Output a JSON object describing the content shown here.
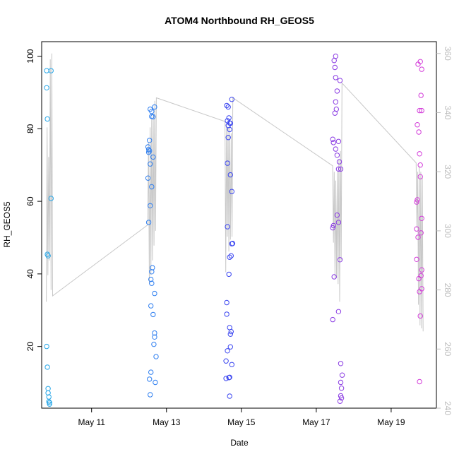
{
  "chart_data": {
    "type": "scatter",
    "title": "ATOM4 Northbound RH_GEOS5",
    "xlabel": "Date",
    "ylabel": "RH_GEOS5",
    "x_axis": {
      "type": "date",
      "range": [
        "2018-05-09T16:00",
        "2018-05-20T05:00"
      ],
      "ticks": [
        {
          "value": "2018-05-11",
          "label": "May 11"
        },
        {
          "value": "2018-05-13",
          "label": "May 13"
        },
        {
          "value": "2018-05-15",
          "label": "May 15"
        },
        {
          "value": "2018-05-17",
          "label": "May 17"
        },
        {
          "value": "2018-05-19",
          "label": "May 19"
        }
      ]
    },
    "y_axis_left": {
      "range": [
        3,
        104
      ],
      "ticks": [
        20,
        40,
        60,
        80,
        100
      ]
    },
    "y_axis_right": {
      "range": [
        240,
        364
      ],
      "ticks": [
        240,
        260,
        280,
        300,
        320,
        340,
        360
      ],
      "color": "#bdbdbd"
    },
    "grid": false,
    "legend": "none",
    "line_color": "#c8c8c8",
    "series": [
      {
        "color": "#28a7e8",
        "points": [
          [
            "2018-05-09T19:12",
            96
          ],
          [
            "2018-05-09T19:12",
            91.3
          ],
          [
            "2018-05-09T19:40",
            82.7
          ],
          [
            "2018-05-09T19:40",
            45.4
          ],
          [
            "2018-05-09T20:08",
            45
          ],
          [
            "2018-05-09T19:12",
            20
          ],
          [
            "2018-05-09T19:40",
            14.3
          ],
          [
            "2018-05-09T20:08",
            8.4
          ],
          [
            "2018-05-09T20:08",
            7.2
          ],
          [
            "2018-05-09T20:36",
            6.1
          ],
          [
            "2018-05-09T20:36",
            4.8
          ],
          [
            "2018-05-09T21:04",
            4.5
          ],
          [
            "2018-05-09T21:04",
            4.1
          ],
          [
            "2018-05-09T22:00",
            96
          ],
          [
            "2018-05-09T22:00",
            60.8
          ]
        ]
      },
      {
        "color": "#2f7ff0",
        "points": [
          [
            "2018-05-12T12:10",
            75
          ],
          [
            "2018-05-12T12:10",
            66.4
          ],
          [
            "2018-05-12T12:38",
            74.3
          ],
          [
            "2018-05-12T12:38",
            73.5
          ],
          [
            "2018-05-12T13:06",
            76.8
          ],
          [
            "2018-05-12T13:06",
            73.9
          ],
          [
            "2018-05-12T13:34",
            70.3
          ],
          [
            "2018-05-12T13:34",
            58.8
          ],
          [
            "2018-05-12T12:38",
            54.2
          ],
          [
            "2018-05-12T13:34",
            85.4
          ],
          [
            "2018-05-12T14:30",
            84.8
          ],
          [
            "2018-05-12T14:30",
            83.4
          ],
          [
            "2018-05-12T15:26",
            83.3
          ],
          [
            "2018-05-12T16:22",
            86
          ],
          [
            "2018-05-12T15:26",
            72.2
          ],
          [
            "2018-05-12T14:30",
            64
          ],
          [
            "2018-05-12T14:58",
            41.7
          ],
          [
            "2018-05-12T14:30",
            40.6
          ],
          [
            "2018-05-12T14:02",
            38.5
          ],
          [
            "2018-05-12T14:30",
            37.4
          ],
          [
            "2018-05-12T16:22",
            34.6
          ],
          [
            "2018-05-12T14:02",
            31.2
          ],
          [
            "2018-05-12T15:26",
            28.8
          ],
          [
            "2018-05-12T16:22",
            23.7
          ],
          [
            "2018-05-12T16:22",
            22.6
          ],
          [
            "2018-05-12T15:54",
            20.6
          ],
          [
            "2018-05-12T17:18",
            17.2
          ],
          [
            "2018-05-12T14:02",
            12.9
          ],
          [
            "2018-05-12T13:06",
            11
          ],
          [
            "2018-05-12T16:50",
            10.1
          ],
          [
            "2018-05-12T13:34",
            6.7
          ]
        ]
      },
      {
        "color": "#3a45f0",
        "points": [
          [
            "2018-05-14T14:38",
            86.4
          ],
          [
            "2018-05-14T15:34",
            86
          ],
          [
            "2018-05-14T17:54",
            88.1
          ],
          [
            "2018-05-14T16:02",
            83
          ],
          [
            "2018-05-14T15:06",
            82.2
          ],
          [
            "2018-05-14T16:30",
            81.6
          ],
          [
            "2018-05-14T15:34",
            80.9
          ],
          [
            "2018-05-14T16:58",
            81.5
          ],
          [
            "2018-05-14T16:30",
            79.8
          ],
          [
            "2018-05-14T15:34",
            77.6
          ],
          [
            "2018-05-14T15:06",
            70.5
          ],
          [
            "2018-05-14T16:58",
            67.3
          ],
          [
            "2018-05-14T17:54",
            62.7
          ],
          [
            "2018-05-14T15:06",
            53
          ],
          [
            "2018-05-14T17:54",
            48.3
          ],
          [
            "2018-05-14T18:22",
            48.4
          ],
          [
            "2018-05-14T17:26",
            45
          ],
          [
            "2018-05-14T16:30",
            44.6
          ],
          [
            "2018-05-14T16:02",
            39.9
          ],
          [
            "2018-05-14T14:38",
            32.1
          ],
          [
            "2018-05-14T14:38",
            28.9
          ],
          [
            "2018-05-14T16:30",
            25.2
          ],
          [
            "2018-05-14T17:26",
            24.1
          ],
          [
            "2018-05-14T16:58",
            23.4
          ],
          [
            "2018-05-14T16:58",
            19.9
          ],
          [
            "2018-05-14T15:06",
            18.8
          ],
          [
            "2018-05-14T14:10",
            16
          ],
          [
            "2018-05-14T17:54",
            15
          ],
          [
            "2018-05-14T14:10",
            11.2
          ],
          [
            "2018-05-14T16:02",
            11.4
          ],
          [
            "2018-05-14T16:30",
            11.5
          ],
          [
            "2018-05-14T16:30",
            6.3
          ]
        ]
      },
      {
        "color": "#8a3be3",
        "points": [
          [
            "2018-05-17T12:25",
            100
          ],
          [
            "2018-05-17T11:29",
            98.8
          ],
          [
            "2018-05-17T11:57",
            96.9
          ],
          [
            "2018-05-17T12:25",
            94.1
          ],
          [
            "2018-05-17T15:13",
            93.3
          ],
          [
            "2018-05-17T13:21",
            90.4
          ],
          [
            "2018-05-17T12:25",
            87.4
          ],
          [
            "2018-05-17T12:53",
            85.4
          ],
          [
            "2018-05-17T11:57",
            84.3
          ],
          [
            "2018-05-17T10:33",
            77.1
          ],
          [
            "2018-05-17T11:01",
            76.2
          ],
          [
            "2018-05-17T14:17",
            76.5
          ],
          [
            "2018-05-17T12:25",
            74.4
          ],
          [
            "2018-05-17T13:21",
            72.7
          ],
          [
            "2018-05-17T14:45",
            70.9
          ],
          [
            "2018-05-17T14:17",
            68.9
          ],
          [
            "2018-05-17T15:41",
            68.9
          ],
          [
            "2018-05-17T13:21",
            56.2
          ],
          [
            "2018-05-17T14:17",
            54.2
          ],
          [
            "2018-05-17T11:01",
            53.3
          ],
          [
            "2018-05-17T10:33",
            52.7
          ],
          [
            "2018-05-17T15:13",
            43.9
          ],
          [
            "2018-05-17T11:29",
            39.2
          ],
          [
            "2018-05-17T14:17",
            29.6
          ],
          [
            "2018-05-17T10:33",
            27.4
          ],
          [
            "2018-05-17T15:41",
            15.3
          ],
          [
            "2018-05-17T16:37",
            12.1
          ],
          [
            "2018-05-17T15:41",
            10.1
          ],
          [
            "2018-05-17T16:09",
            8.5
          ],
          [
            "2018-05-17T15:41",
            6.4
          ],
          [
            "2018-05-17T16:09",
            5.8
          ],
          [
            "2018-05-17T15:13",
            4.9
          ]
        ]
      },
      {
        "color": "#d33bd9",
        "points": [
          [
            "2018-05-19T17:15",
            97.8
          ],
          [
            "2018-05-19T18:40",
            98.5
          ],
          [
            "2018-05-19T19:36",
            96.4
          ],
          [
            "2018-05-19T19:08",
            89.2
          ],
          [
            "2018-05-19T18:12",
            85
          ],
          [
            "2018-05-19T19:36",
            85
          ],
          [
            "2018-05-19T16:47",
            81.1
          ],
          [
            "2018-05-19T17:43",
            79.1
          ],
          [
            "2018-05-19T18:12",
            73.1
          ],
          [
            "2018-05-19T18:40",
            70
          ],
          [
            "2018-05-19T18:40",
            66.8
          ],
          [
            "2018-05-19T16:47",
            60.4
          ],
          [
            "2018-05-19T16:19",
            59.8
          ],
          [
            "2018-05-19T19:36",
            55.3
          ],
          [
            "2018-05-19T16:19",
            52.4
          ],
          [
            "2018-05-19T19:08",
            51.3
          ],
          [
            "2018-05-19T17:15",
            50.1
          ],
          [
            "2018-05-19T16:19",
            44
          ],
          [
            "2018-05-19T19:36",
            41.1
          ],
          [
            "2018-05-19T19:08",
            39.5
          ],
          [
            "2018-05-19T17:43",
            38.7
          ],
          [
            "2018-05-19T19:36",
            35.9
          ],
          [
            "2018-05-19T18:12",
            35.1
          ],
          [
            "2018-05-19T18:40",
            28.4
          ],
          [
            "2018-05-19T18:12",
            10.3
          ]
        ]
      }
    ],
    "line_series": {
      "axis": "right",
      "points": [
        [
          "2018-05-09T19:00",
          276
        ],
        [
          "2018-05-09T19:30",
          335
        ],
        [
          "2018-05-09T20:00",
          285
        ],
        [
          "2018-05-09T20:30",
          325
        ],
        [
          "2018-05-09T21:00",
          290
        ],
        [
          "2018-05-09T21:30",
          358
        ],
        [
          "2018-05-09T22:00",
          280
        ],
        [
          "2018-05-09T22:30",
          360
        ],
        [
          "2018-05-09T23:00",
          278
        ],
        [
          "2018-05-12T12:00",
          302
        ],
        [
          "2018-05-12T12:30",
          330
        ],
        [
          "2018-05-12T13:00",
          282
        ],
        [
          "2018-05-12T13:30",
          335
        ],
        [
          "2018-05-12T14:00",
          285
        ],
        [
          "2018-05-12T14:30",
          338
        ],
        [
          "2018-05-12T15:00",
          290
        ],
        [
          "2018-05-12T15:30",
          340
        ],
        [
          "2018-05-12T16:00",
          295
        ],
        [
          "2018-05-12T16:30",
          344
        ],
        [
          "2018-05-12T17:00",
          300
        ],
        [
          "2018-05-12T17:30",
          345
        ],
        [
          "2018-05-14T13:30",
          337
        ],
        [
          "2018-05-14T14:00",
          286
        ],
        [
          "2018-05-14T14:30",
          336
        ],
        [
          "2018-05-14T15:00",
          298
        ],
        [
          "2018-05-14T15:30",
          335
        ],
        [
          "2018-05-14T16:00",
          293
        ],
        [
          "2018-05-14T16:30",
          336
        ],
        [
          "2018-05-14T17:00",
          297
        ],
        [
          "2018-05-14T17:30",
          333
        ],
        [
          "2018-05-14T18:00",
          298
        ],
        [
          "2018-05-14T18:30",
          345
        ],
        [
          "2018-05-17T10:30",
          322
        ],
        [
          "2018-05-17T11:00",
          296
        ],
        [
          "2018-05-17T11:30",
          320
        ],
        [
          "2018-05-17T12:00",
          284
        ],
        [
          "2018-05-17T12:30",
          317
        ],
        [
          "2018-05-17T13:00",
          284
        ],
        [
          "2018-05-17T13:30",
          320
        ],
        [
          "2018-05-17T14:00",
          282
        ],
        [
          "2018-05-17T14:30",
          324
        ],
        [
          "2018-05-17T15:00",
          276
        ],
        [
          "2018-05-17T15:30",
          327
        ],
        [
          "2018-05-17T16:00",
          290
        ],
        [
          "2018-05-17T16:30",
          350
        ],
        [
          "2018-05-19T16:00",
          323
        ],
        [
          "2018-05-19T16:30",
          301
        ],
        [
          "2018-05-19T17:00",
          320
        ],
        [
          "2018-05-19T17:30",
          275
        ],
        [
          "2018-05-19T18:00",
          322
        ],
        [
          "2018-05-19T18:30",
          268
        ],
        [
          "2018-05-19T19:00",
          320
        ],
        [
          "2018-05-19T19:30",
          267
        ],
        [
          "2018-05-19T20:00",
          318
        ],
        [
          "2018-05-19T20:30",
          266
        ]
      ]
    }
  }
}
